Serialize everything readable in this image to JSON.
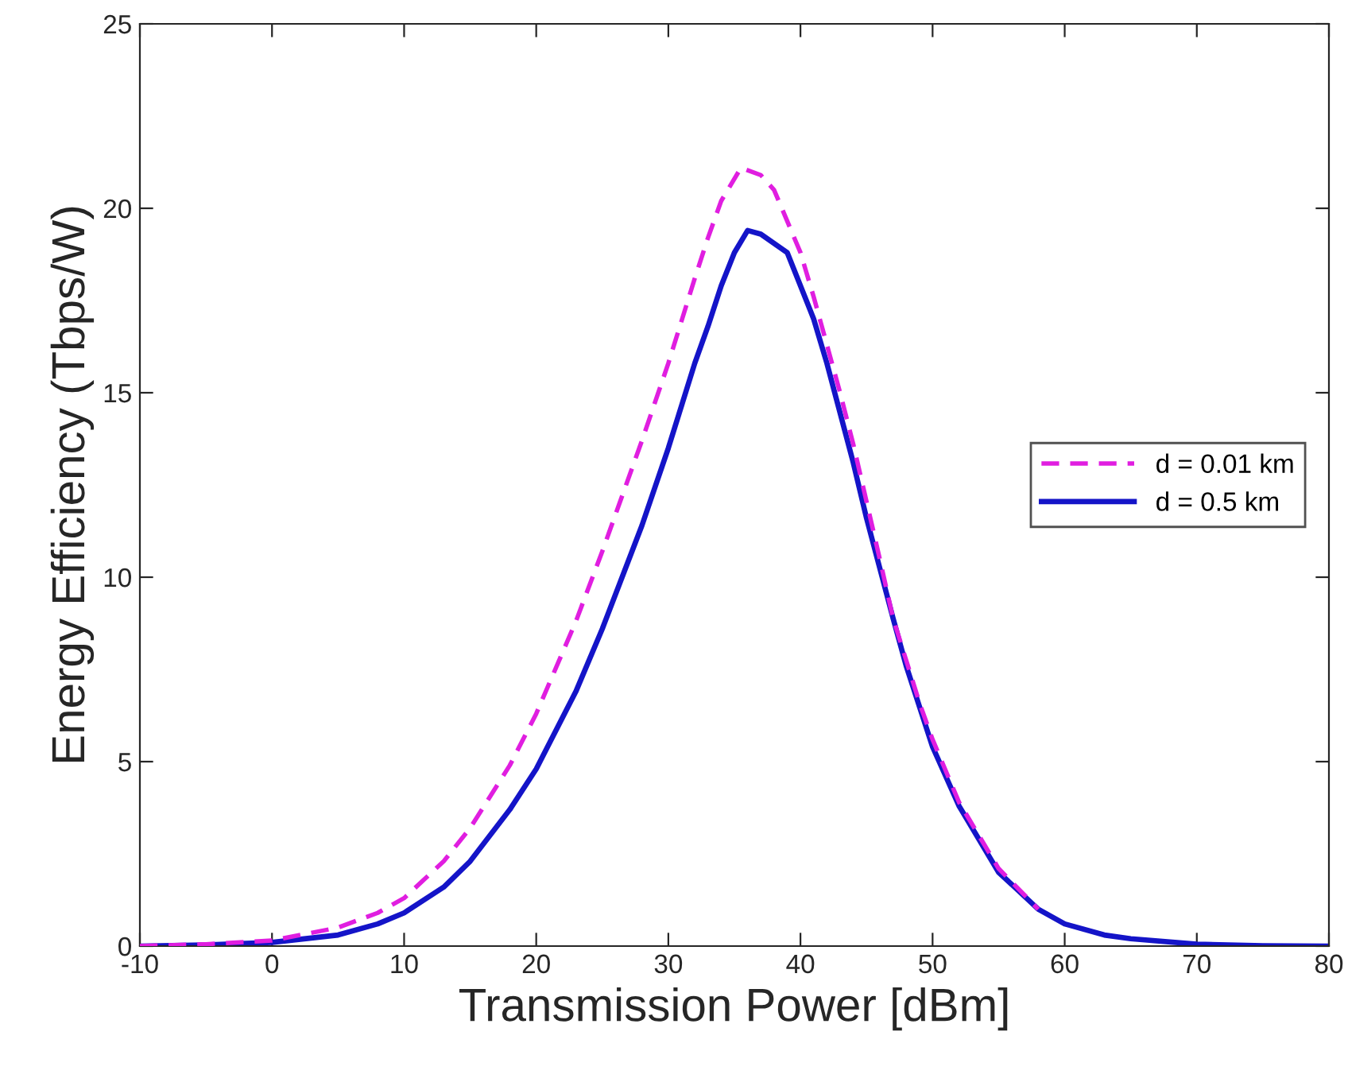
{
  "chart_data": {
    "type": "line",
    "xlabel": "Transmission Power [dBm]",
    "ylabel": "Energy Efficiency (Tbps/W)",
    "xlim": [
      -10,
      80
    ],
    "xticks": [
      -10,
      0,
      10,
      20,
      30,
      40,
      50,
      60,
      70,
      80
    ],
    "ylim": [
      0,
      25
    ],
    "yticks": [
      0,
      5,
      10,
      15,
      20,
      25
    ],
    "grid": false,
    "legend": "right",
    "marker": "none",
    "series": [
      {
        "name": "d = 0.01 km",
        "color": "#e01ee0",
        "line_style": "dashed",
        "x": [
          -10,
          -5,
          0,
          5,
          8,
          10,
          13,
          15,
          18,
          20,
          23,
          25,
          28,
          30,
          32,
          33,
          34,
          35.5,
          37,
          38,
          40,
          41,
          43,
          44,
          46,
          47,
          49,
          50,
          52,
          55,
          58
        ],
        "values": [
          0,
          0.05,
          0.15,
          0.5,
          0.9,
          1.3,
          2.3,
          3.2,
          4.9,
          6.3,
          8.8,
          10.7,
          13.7,
          15.8,
          18.1,
          19.2,
          20.2,
          21.1,
          20.9,
          20.5,
          18.8,
          17.6,
          15.0,
          13.6,
          10.5,
          8.9,
          6.6,
          5.6,
          3.9,
          2.1,
          1.0
        ]
      },
      {
        "name": "d = 0.5 km",
        "color": "#1414c8",
        "line_style": "solid",
        "x": [
          -10,
          -5,
          0,
          5,
          8,
          10,
          13,
          15,
          18,
          20,
          23,
          25,
          28,
          30,
          32,
          33,
          34,
          35,
          36,
          37,
          39,
          41,
          42,
          44,
          45,
          47,
          48,
          50,
          52,
          55,
          58,
          60,
          63,
          65,
          70,
          75,
          80
        ],
        "values": [
          0,
          0.03,
          0.1,
          0.3,
          0.6,
          0.9,
          1.6,
          2.3,
          3.7,
          4.8,
          6.9,
          8.6,
          11.4,
          13.5,
          15.8,
          16.8,
          17.9,
          18.8,
          19.4,
          19.3,
          18.8,
          17.0,
          15.8,
          13.1,
          11.6,
          8.9,
          7.6,
          5.4,
          3.8,
          2.0,
          1.0,
          0.6,
          0.3,
          0.2,
          0.05,
          0.01,
          0
        ]
      }
    ]
  }
}
